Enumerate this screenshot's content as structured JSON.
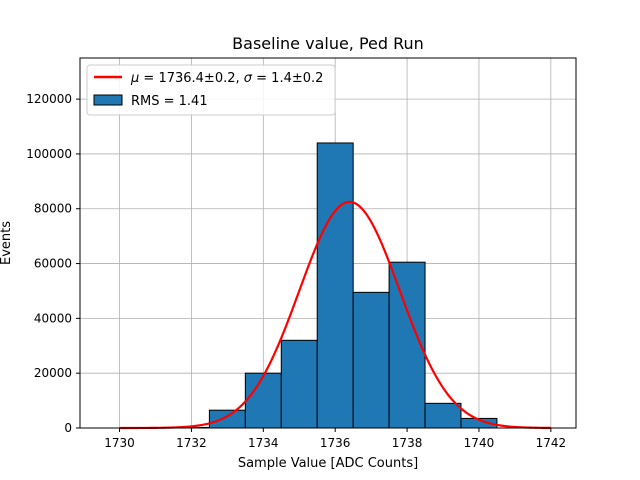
{
  "chart_data": {
    "type": "bar",
    "title": "Baseline value, Ped Run",
    "xlabel": "Sample Value [ADC Counts]",
    "ylabel": "Events",
    "xlim": [
      1728.9,
      1742.7
    ],
    "ylim": [
      0,
      135000
    ],
    "xticks": [
      1730,
      1732,
      1734,
      1736,
      1738,
      1740,
      1742
    ],
    "xtick_labels": [
      "1730",
      "1732",
      "1734",
      "1736",
      "1738",
      "1740",
      "1742"
    ],
    "yticks": [
      0,
      20000,
      40000,
      60000,
      80000,
      100000,
      120000
    ],
    "ytick_labels": [
      "0",
      "20000",
      "40000",
      "60000",
      "80000",
      "100000",
      "120000"
    ],
    "grid": true,
    "legend_position": "top-left",
    "histogram": {
      "name": "RMS = 1.41",
      "color": "#1f77b4",
      "edgecolor": "#000000",
      "bins": [
        {
          "x0": 1729.5,
          "x1": 1730.5,
          "value": 0
        },
        {
          "x0": 1730.5,
          "x1": 1731.5,
          "value": 0
        },
        {
          "x0": 1731.5,
          "x1": 1732.5,
          "value": 200
        },
        {
          "x0": 1732.5,
          "x1": 1733.5,
          "value": 6500
        },
        {
          "x0": 1733.5,
          "x1": 1734.5,
          "value": 20000
        },
        {
          "x0": 1734.5,
          "x1": 1735.5,
          "value": 32000
        },
        {
          "x0": 1735.5,
          "x1": 1736.5,
          "value": 104000
        },
        {
          "x0": 1736.5,
          "x1": 1737.5,
          "value": 49500
        },
        {
          "x0": 1737.5,
          "x1": 1738.5,
          "value": 60500
        },
        {
          "x0": 1738.5,
          "x1": 1739.5,
          "value": 9000
        },
        {
          "x0": 1739.5,
          "x1": 1740.5,
          "value": 3500
        },
        {
          "x0": 1740.5,
          "x1": 1741.5,
          "value": 0
        }
      ]
    },
    "fit": {
      "name_prefix_mu": "μ",
      "name_text": " = 1736.4±0.2, ",
      "name_prefix_sigma": "σ",
      "name_text2": " = 1.4±0.2",
      "color": "#ff0000",
      "mu": 1736.4,
      "sigma": 1.4,
      "amplitude": 82500,
      "x_range": [
        1730,
        1742
      ]
    }
  }
}
